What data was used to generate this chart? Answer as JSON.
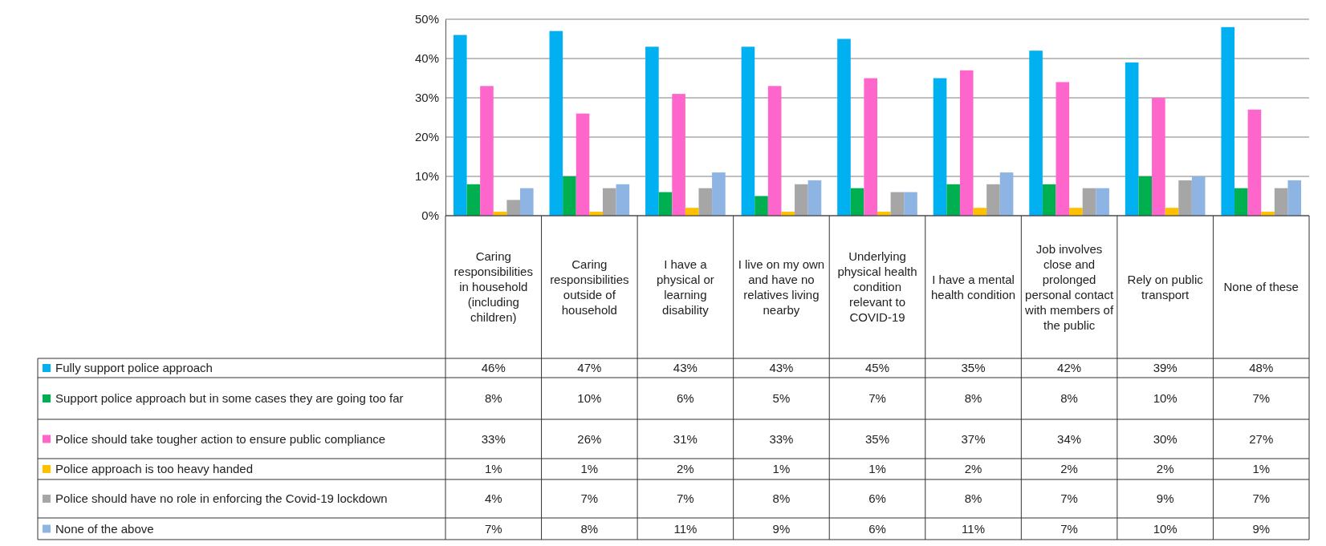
{
  "chart_data": {
    "type": "bar",
    "categories": [
      "Caring responsibilities in household (including children)",
      "Caring responsibilities outside of household",
      "I have a physical or learning disability",
      "I live on my own and have no relatives living nearby",
      "Underlying physical health condition relevant to COVID-19",
      "I have a mental health condition",
      "Job involves close and prolonged personal contact with members of the public",
      "Rely on public transport",
      "None of these"
    ],
    "series": [
      {
        "name": "Fully support police approach",
        "color": "#00b0f0",
        "values": [
          46,
          47,
          43,
          43,
          45,
          35,
          42,
          39,
          48
        ],
        "value_labels": [
          "46%",
          "47%",
          "43%",
          "43%",
          "45%",
          "35%",
          "42%",
          "39%",
          "48%"
        ]
      },
      {
        "name": "Support police approach but in some cases they are going too far",
        "color": "#00b050",
        "values": [
          8,
          10,
          6,
          5,
          7,
          8,
          8,
          10,
          7
        ],
        "value_labels": [
          "8%",
          "10%",
          "6%",
          "5%",
          "7%",
          "8%",
          "8%",
          "10%",
          "7%"
        ]
      },
      {
        "name": "Police should take tougher action to ensure public compliance",
        "color": "#ff66cc",
        "values": [
          33,
          26,
          31,
          33,
          35,
          37,
          34,
          30,
          27
        ],
        "value_labels": [
          "33%",
          "26%",
          "31%",
          "33%",
          "35%",
          "37%",
          "34%",
          "30%",
          "27%"
        ]
      },
      {
        "name": "Police approach is too heavy handed",
        "color": "#ffc000",
        "values": [
          1,
          1,
          2,
          1,
          1,
          2,
          2,
          2,
          1
        ],
        "value_labels": [
          "1%",
          "1%",
          "2%",
          "1%",
          "1%",
          "2%",
          "2%",
          "2%",
          "1%"
        ]
      },
      {
        "name": "Police should have no role in enforcing the Covid-19 lockdown",
        "color": "#a6a6a6",
        "values": [
          4,
          7,
          7,
          8,
          6,
          8,
          7,
          9,
          7
        ],
        "value_labels": [
          "4%",
          "7%",
          "7%",
          "8%",
          "6%",
          "8%",
          "7%",
          "9%",
          "7%"
        ]
      },
      {
        "name": "None of the above",
        "color": "#8db4e2",
        "values": [
          7,
          8,
          11,
          9,
          6,
          11,
          7,
          10,
          9
        ],
        "value_labels": [
          "7%",
          "8%",
          "11%",
          "9%",
          "6%",
          "11%",
          "7%",
          "10%",
          "9%"
        ]
      }
    ],
    "ylim": [
      0,
      50
    ],
    "yticks": [
      {
        "value": 0,
        "label": "0%"
      },
      {
        "value": 10,
        "label": "10%"
      },
      {
        "value": 20,
        "label": "20%"
      },
      {
        "value": 30,
        "label": "30%"
      },
      {
        "value": 40,
        "label": "40%"
      },
      {
        "value": 50,
        "label": "50%"
      }
    ],
    "grid": "y",
    "legend": "bottom"
  }
}
